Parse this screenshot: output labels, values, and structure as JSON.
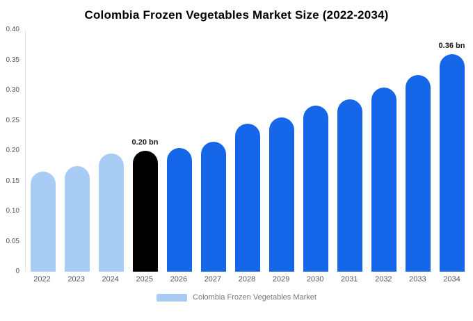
{
  "chart": {
    "title": "Colombia Frozen Vegetables Market Size (2022-2034)"
  },
  "chart_data": {
    "type": "bar",
    "title": "Colombia Frozen Vegetables Market Size (2022-2034)",
    "categories": [
      "2022",
      "2023",
      "2024",
      "2025",
      "2026",
      "2027",
      "2028",
      "2029",
      "2030",
      "2031",
      "2032",
      "2033",
      "2034"
    ],
    "values": [
      0.165,
      0.175,
      0.195,
      0.2,
      0.205,
      0.215,
      0.245,
      0.255,
      0.275,
      0.285,
      0.305,
      0.325,
      0.36
    ],
    "unit": "bn",
    "xlabel": "",
    "ylabel": "",
    "ylim": [
      0,
      0.4
    ],
    "ytick_labels": [
      "0",
      "0.05",
      "0.10",
      "0.15",
      "0.20",
      "0.25",
      "0.30",
      "0.35",
      "0.40"
    ],
    "grid": false,
    "bar_colors": [
      "#a8ccf4",
      "#a8ccf4",
      "#a8ccf4",
      "#000000",
      "#1566e8",
      "#1566e8",
      "#1566e8",
      "#1566e8",
      "#1566e8",
      "#1566e8",
      "#1566e8",
      "#1566e8",
      "#1566e8"
    ],
    "color_roles": {
      "historical": "#a8ccf4",
      "highlight": "#000000",
      "forecast": "#1566e8"
    },
    "annotations": [
      {
        "category": "2025",
        "text": "0.20 bn"
      },
      {
        "category": "2034",
        "text": "0.36 bn"
      }
    ],
    "legend_position": "bottom",
    "legend": [
      {
        "label": "Colombia Frozen Vegetables Market",
        "color": "#a8ccf4"
      }
    ]
  }
}
